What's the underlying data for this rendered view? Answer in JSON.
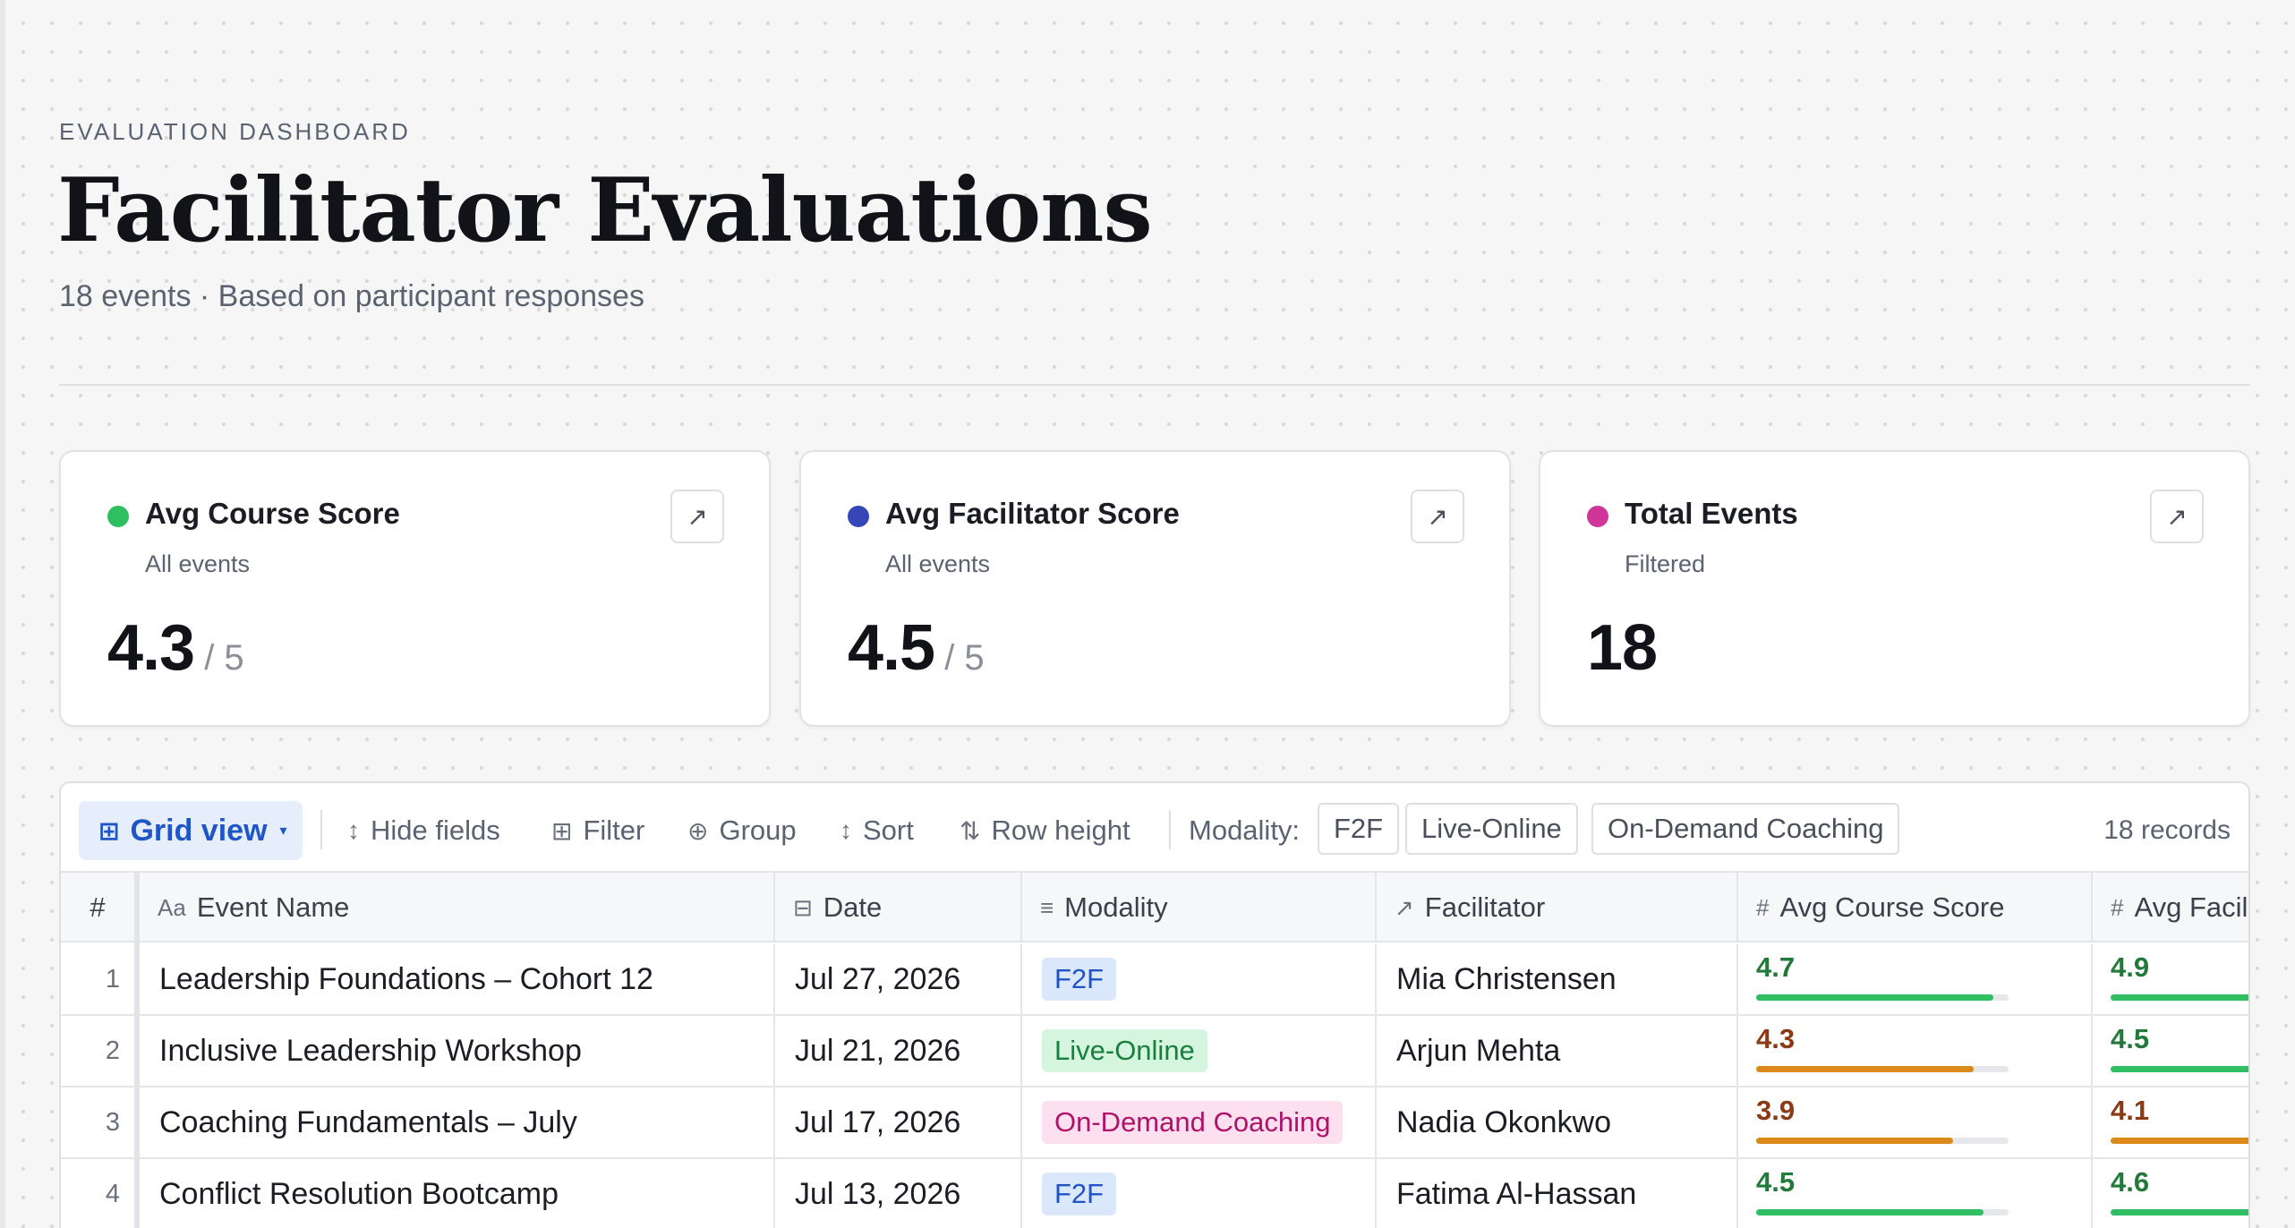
{
  "header": {
    "eyebrow": "EVALUATION DASHBOARD",
    "title": "Facilitator Evaluations",
    "subtitle": "18 events · Based on participant responses"
  },
  "cards": [
    {
      "label": "Avg Course Score",
      "sub": "All events",
      "value": "4.3",
      "suffix": " / 5",
      "dot_color": "#2fbf62"
    },
    {
      "label": "Avg Facilitator Score",
      "sub": "All events",
      "value": "4.5",
      "suffix": " / 5",
      "dot_color": "#3446b8"
    },
    {
      "label": "Total Events",
      "sub": "Filtered",
      "value": "18",
      "suffix": "",
      "dot_color": "#d0369a"
    }
  ],
  "toolbar": {
    "grid_view": "Grid view",
    "hide_fields": "Hide fields",
    "filter": "Filter",
    "group": "Group",
    "sort": "Sort",
    "row_height": "Row height",
    "modality_label": "Modality:",
    "modality_options": [
      "F2F",
      "Live-Online",
      "On-Demand Coaching"
    ],
    "records": "18 records"
  },
  "columns": {
    "num": "#",
    "event_name": "Event Name",
    "date": "Date",
    "modality": "Modality",
    "facilitator": "Facilitator",
    "avg_course": "Avg Course Score",
    "avg_facilitator": "Avg Facilitator Score"
  },
  "colors": {
    "good": "#2fbf62",
    "warn": "#d98a1b",
    "good_text": "#217a3a",
    "warn_text": "#8a3a14"
  },
  "rows": [
    {
      "num": "1",
      "event": "Leadership Foundations – Cohort 12",
      "date": "Jul 27, 2026",
      "modality": "F2F",
      "facilitator": "Mia Christensen",
      "course": "4.7",
      "fac": "4.9"
    },
    {
      "num": "2",
      "event": "Inclusive Leadership Workshop",
      "date": "Jul 21, 2026",
      "modality": "Live-Online",
      "facilitator": "Arjun Mehta",
      "course": "4.3",
      "fac": "4.5"
    },
    {
      "num": "3",
      "event": "Coaching Fundamentals – July",
      "date": "Jul 17, 2026",
      "modality": "On-Demand Coaching",
      "facilitator": "Nadia Okonkwo",
      "course": "3.9",
      "fac": "4.1"
    },
    {
      "num": "4",
      "event": "Conflict Resolution Bootcamp",
      "date": "Jul 13, 2026",
      "modality": "F2F",
      "facilitator": "Fatima Al-Hassan",
      "course": "4.5",
      "fac": "4.6"
    }
  ]
}
